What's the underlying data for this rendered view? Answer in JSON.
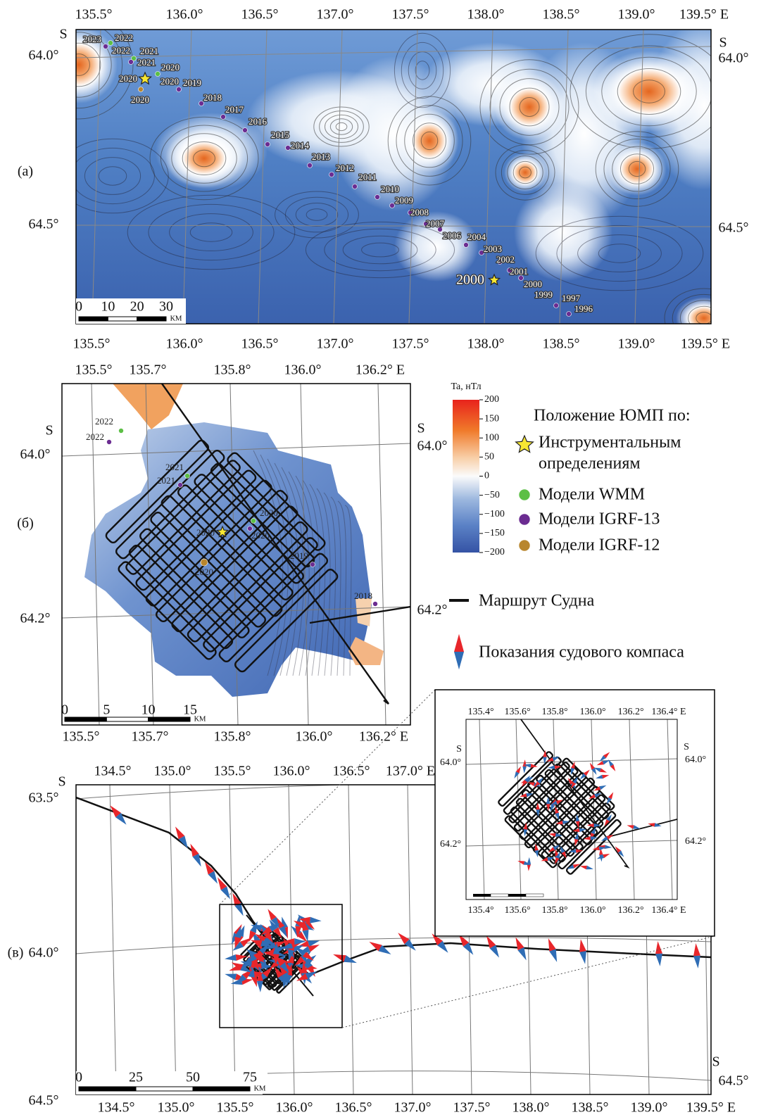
{
  "panel_a": {
    "label": "(а)",
    "top_ticks": [
      "135.5°",
      "136.0°",
      "136.5°",
      "137.0°",
      "137.5°",
      "138.0°",
      "138.5°",
      "139.0°",
      "139.5° E"
    ],
    "bottom_ticks": [
      "135.5°",
      "136.0°",
      "136.5°",
      "137.0°",
      "137.5°",
      "138.0°",
      "138.5°",
      "139.0°",
      "139.5° E"
    ],
    "left_ticks": [
      "S",
      "64.0°",
      "64.5°"
    ],
    "right_ticks": [
      "S",
      "64.0°",
      "64.5°"
    ],
    "year_labels": [
      "2023",
      "2022",
      "2022",
      "2021",
      "2021",
      "2020",
      "2020",
      "2020",
      "2020",
      "2019",
      "2018",
      "2017",
      "2016",
      "2015",
      "2014",
      "2013",
      "2012",
      "2011",
      "2010",
      "2009",
      "2008",
      "2007",
      "2006",
      "2004",
      "2003",
      "2002",
      "2001",
      "2000",
      "2000",
      "1999",
      "1997",
      "1996"
    ],
    "scale": {
      "ticks": [
        0,
        10,
        20,
        30
      ],
      "unit": "КМ"
    }
  },
  "panel_b": {
    "label": "(б)",
    "top_ticks": [
      "135.5°",
      "135.7°",
      "135.8°",
      "136.0°",
      "136.2° E"
    ],
    "bottom_ticks": [
      "135.5°",
      "135.7°",
      "135.8°",
      "136.0°",
      "136.2° E"
    ],
    "left_ticks": [
      "S",
      "64.0°",
      "64.2°"
    ],
    "right_ticks": [
      "S",
      "64.0°",
      "64.2°"
    ],
    "year_labels": [
      "2022",
      "2022",
      "2021",
      "2021",
      "2020",
      "2020",
      "2020",
      "2020",
      "2019",
      "2018"
    ],
    "scale": {
      "ticks": [
        0,
        5,
        10,
        15
      ],
      "unit": "КМ"
    }
  },
  "colorbar": {
    "title": "Ta, нТл",
    "lim": [
      -200,
      200
    ],
    "ticks": [
      200,
      150,
      100,
      50,
      0,
      {
        "value": -50,
        "label": "−50"
      },
      {
        "value": -100,
        "label": "−100"
      },
      {
        "value": -150,
        "label": "−150"
      },
      {
        "value": -200,
        "label": "−200"
      }
    ]
  },
  "legend": {
    "heading": "Положение ЮМП по:",
    "instrumental": [
      "Инструментальным",
      "определениям"
    ],
    "wmm": "Модели WMM",
    "igrf13": "Модели IGRF-13",
    "igrf12": "Модели IGRF-12",
    "route": "Маршрут Судна",
    "compass": "Показания судового компаса"
  },
  "panel_c": {
    "label": "(в)",
    "top_ticks": [
      "134.5°",
      "135.0°",
      "135.5°",
      "136.0°",
      "136.5°",
      "137.0° E"
    ],
    "bottom_ticks": [
      "134.5°",
      "135.0°",
      "135.5°",
      "136.0°",
      "136.5°",
      "137.0°",
      "137.5°",
      "138.0°",
      "138.5°",
      "139.0°",
      "139.5° E"
    ],
    "left_ticks": [
      "S",
      "63.5°",
      "64.0°",
      "64.5°"
    ],
    "right_ticks": [
      "S",
      "64.5°"
    ],
    "scale": {
      "ticks": [
        0,
        25,
        50,
        75
      ],
      "unit": "КМ"
    },
    "inset": {
      "top_ticks": [
        "135.4°",
        "135.6°",
        "135.8°",
        "136.0°",
        "136.2°",
        "136.4° E"
      ],
      "bottom_ticks": [
        "135.4°",
        "135.6°",
        "135.8°",
        "136.0°",
        "136.2°",
        "136.4° E"
      ],
      "left_ticks": [
        "S",
        "64.0°",
        "64.2°"
      ],
      "right_ticks": [
        "S",
        "64.0°",
        "64.2°"
      ]
    }
  }
}
